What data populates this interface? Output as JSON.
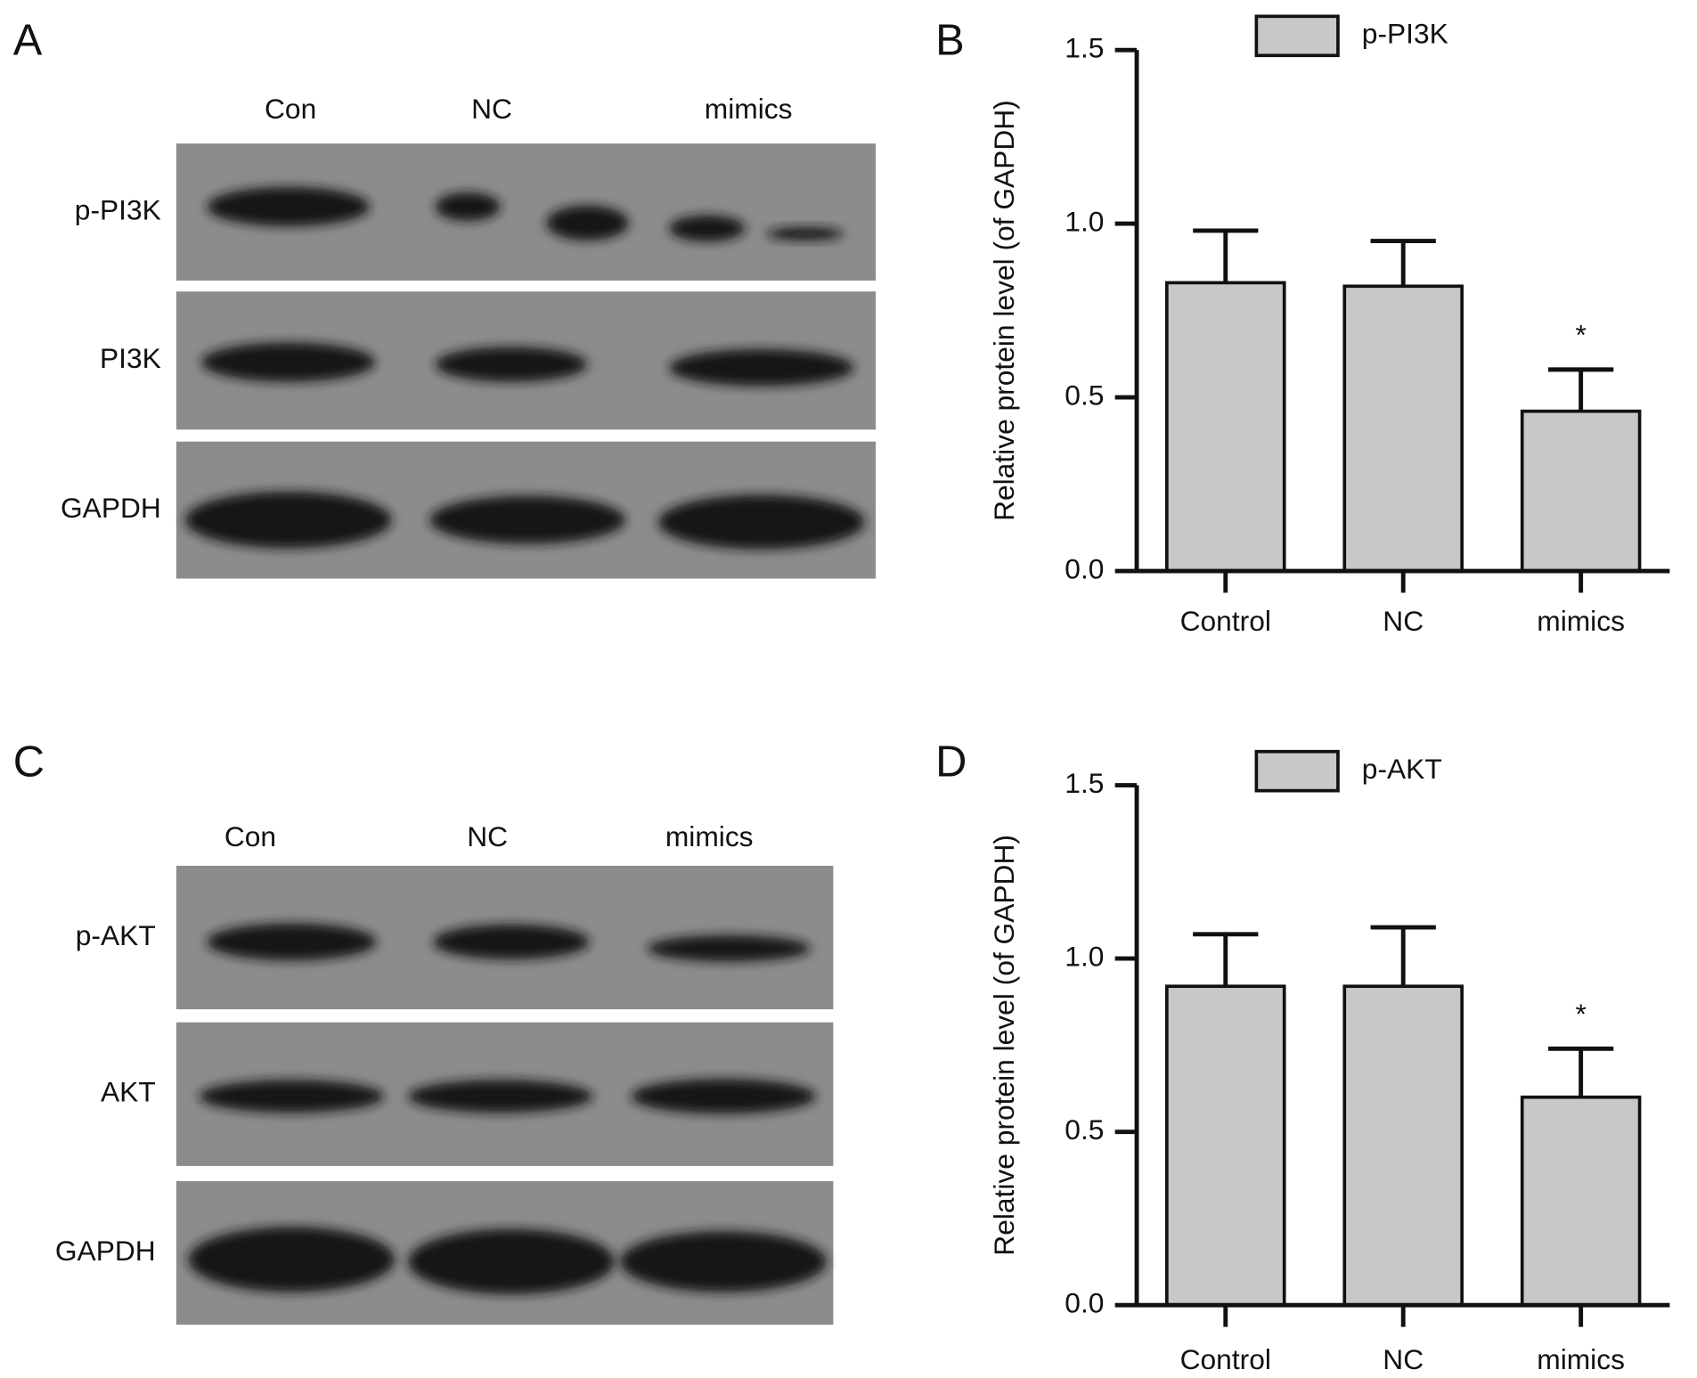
{
  "blots": [
    {
      "panel": "A",
      "lanes": [
        "Con",
        "NC",
        "mimics"
      ],
      "rows": [
        "p-PI3K",
        "PI3K",
        "GAPDH"
      ]
    },
    {
      "panel": "C",
      "lanes": [
        "Con",
        "NC",
        "mimics"
      ],
      "rows": [
        "p-AKT",
        "AKT",
        "GAPDH"
      ]
    }
  ],
  "chart_data": [
    {
      "type": "bar",
      "panel": "B",
      "y_label": "Relative protein level (of GAPDH)",
      "categories": [
        "Control",
        "NC",
        "mimics"
      ],
      "series": [
        {
          "name": "p-PI3K",
          "color": "#c8c8c8",
          "values": [
            0.83,
            0.82,
            0.46
          ],
          "errors": [
            0.15,
            0.13,
            0.12
          ]
        }
      ],
      "annotations": [
        {
          "category": "mimics",
          "text": "*"
        }
      ],
      "ylim": [
        0,
        1.5
      ],
      "yticks": [
        {
          "value": 0,
          "label": "0.0"
        },
        {
          "value": 0.5,
          "label": "0.5"
        },
        {
          "value": 1,
          "label": "1.0"
        },
        {
          "value": 1.5,
          "label": "1.5"
        }
      ],
      "legend": "top"
    },
    {
      "type": "bar",
      "panel": "D",
      "y_label": "Relative protein level (of GAPDH)",
      "categories": [
        "Control",
        "NC",
        "mimics"
      ],
      "series": [
        {
          "name": "p-AKT",
          "color": "#c8c8c8",
          "values": [
            0.92,
            0.92,
            0.6
          ],
          "errors": [
            0.15,
            0.17,
            0.14
          ]
        }
      ],
      "annotations": [
        {
          "category": "mimics",
          "text": "*"
        }
      ],
      "ylim": [
        0,
        1.5
      ],
      "yticks": [
        {
          "value": 0,
          "label": "0.0"
        },
        {
          "value": 0.5,
          "label": "0.5"
        },
        {
          "value": 1,
          "label": "1.0"
        },
        {
          "value": 1.5,
          "label": "1.5"
        }
      ],
      "legend": "top"
    }
  ]
}
